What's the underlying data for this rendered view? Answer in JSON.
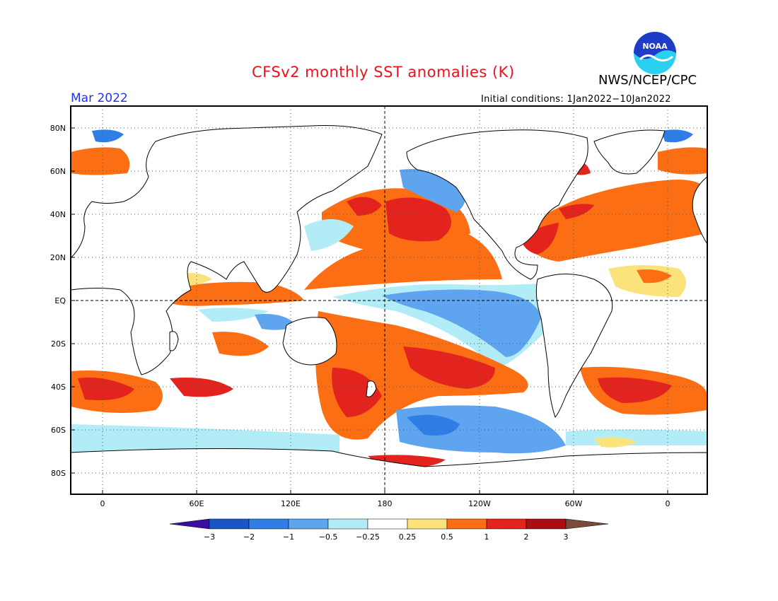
{
  "title": "CFSv2 monthly SST anomalies (K)",
  "agency": "NWS/NCEP/CPC",
  "logo_text": "NOAA",
  "month": "Mar 2022",
  "initial_conditions": "Initial conditions: 1Jan2022−10Jan2022",
  "map": {
    "lat_labels": [
      "80N",
      "60N",
      "40N",
      "20N",
      "EQ",
      "20S",
      "40S",
      "60S",
      "80S"
    ],
    "lon_labels": [
      "0",
      "60E",
      "120E",
      "180",
      "120W",
      "60W",
      "0"
    ]
  },
  "colorbar": {
    "labels": [
      "−3",
      "−2",
      "−1",
      "−0.5",
      "−0.25",
      "0.25",
      "0.5",
      "1",
      "2",
      "3"
    ],
    "colors": [
      "#3b0fa0",
      "#1a55c8",
      "#2f7ee6",
      "#5fa4ee",
      "#b2ecf6",
      "#ffffff",
      "#fbe27a",
      "#fb6e14",
      "#e3241e",
      "#a80e12",
      "#7a4a3a"
    ]
  },
  "colors": {
    "title": "#e8141e",
    "month": "#2233ee",
    "logo_blue": "#1e3cc8",
    "logo_cyan": "#2ad0f0"
  }
}
